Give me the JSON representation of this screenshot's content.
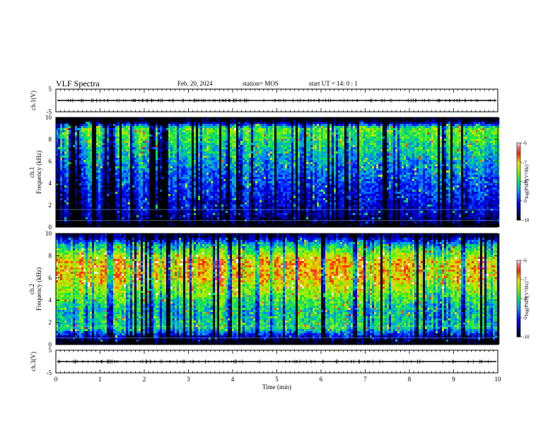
{
  "header": {
    "title": "VLF Spectra",
    "date": "Feb. 20, 2024",
    "station": "station= MOS",
    "start_ut": "start  UT =   14: 0  : 1"
  },
  "chart_data": [
    {
      "type": "line",
      "panel": "ch1-waveform",
      "ylabel": "ch.1(V)",
      "ylim": [
        -5,
        5
      ],
      "yticks": [
        "5",
        "-5"
      ],
      "xlim": [
        0,
        10
      ],
      "baseline": 0,
      "series": [
        {
          "values": [
            0,
            0,
            0,
            0,
            0,
            0,
            0,
            0,
            0,
            0
          ]
        }
      ]
    },
    {
      "type": "heatmap",
      "panel": "ch1-spectrogram",
      "ylabel": [
        "ch.1",
        "Frequency  (kHz)"
      ],
      "ylim": [
        0,
        10
      ],
      "yticks": [
        "0",
        "2",
        "4",
        "6",
        "8",
        "10"
      ],
      "xlim": [
        0,
        10
      ],
      "colorbar": {
        "label": "log(PSD)(V²/Hz)",
        "range": [
          -10,
          -6
        ],
        "ticks": [
          "-6",
          "-7",
          "-8",
          "-9",
          "-10"
        ]
      },
      "level_profile": [
        {
          "freq": 9.7,
          "level": -10
        },
        {
          "freq": 9.0,
          "level": -7.6
        },
        {
          "freq": 7.5,
          "level": -8.0
        },
        {
          "freq": 5.0,
          "level": -8.6
        },
        {
          "freq": 2.5,
          "level": -9.1
        },
        {
          "freq": 1.0,
          "level": -9.4
        },
        {
          "freq": 0.3,
          "level": -10
        }
      ]
    },
    {
      "type": "heatmap",
      "panel": "ch2-spectrogram",
      "ylabel": [
        "ch.2",
        "Frequency  (kHz)"
      ],
      "ylim": [
        0,
        10
      ],
      "yticks": [
        "0",
        "2",
        "4",
        "6",
        "8",
        "10"
      ],
      "xlim": [
        0,
        10
      ],
      "colorbar": {
        "label": "log(PSD)(V²/Hz)",
        "range": [
          -10,
          -6
        ],
        "ticks": [
          "-6",
          "-7",
          "-8",
          "-9",
          "-10"
        ]
      },
      "level_profile": [
        {
          "freq": 9.7,
          "level": -9.6
        },
        {
          "freq": 9.0,
          "level": -8.2
        },
        {
          "freq": 7.5,
          "level": -6.9
        },
        {
          "freq": 6.0,
          "level": -7.0
        },
        {
          "freq": 4.5,
          "level": -7.6
        },
        {
          "freq": 3.0,
          "level": -8.2
        },
        {
          "freq": 1.5,
          "level": -8.0
        },
        {
          "freq": 0.3,
          "level": -10
        }
      ]
    },
    {
      "type": "line",
      "panel": "ch3-waveform",
      "ylabel": "ch.3(V)",
      "ylim": [
        -5,
        5
      ],
      "yticks": [
        "5",
        "-5"
      ],
      "xlim": [
        0,
        10
      ],
      "xlabel": "Time  (min)",
      "xticks": [
        "0",
        "1",
        "2",
        "3",
        "4",
        "5",
        "6",
        "7",
        "8",
        "9",
        "10"
      ],
      "baseline": 0,
      "series": [
        {
          "values": [
            0,
            0,
            0,
            0,
            0,
            0,
            0,
            0,
            0,
            0
          ]
        }
      ]
    }
  ]
}
